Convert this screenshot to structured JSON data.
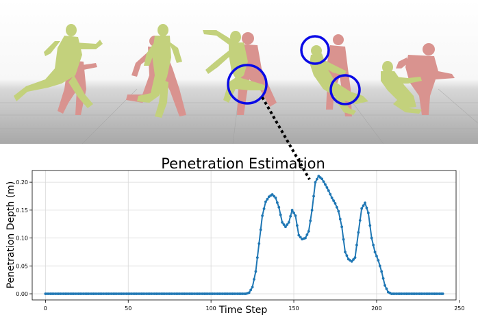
{
  "chart_data": {
    "type": "line",
    "title": "Penetration Estimation",
    "xlabel": "Time Step",
    "ylabel": "Penetration Depth (m)",
    "xlim": [
      -8,
      248
    ],
    "ylim": [
      -0.011,
      0.221
    ],
    "xticks": [
      0,
      50,
      100,
      150,
      200,
      250
    ],
    "yticks": [
      0.0,
      0.05,
      0.1,
      0.15,
      0.2
    ],
    "xtick_labels": [
      "0",
      "50",
      "100",
      "150",
      "200",
      "250"
    ],
    "ytick_labels": [
      "0.00",
      "0.05",
      "0.10",
      "0.15",
      "0.20"
    ],
    "grid": true,
    "marker": "circle",
    "color": "#1f77b4",
    "keypoints": [
      [
        0,
        0
      ],
      [
        121,
        0
      ],
      [
        123,
        0.002
      ],
      [
        125,
        0.012
      ],
      [
        127,
        0.04
      ],
      [
        129,
        0.09
      ],
      [
        131,
        0.14
      ],
      [
        133,
        0.165
      ],
      [
        135,
        0.174
      ],
      [
        137,
        0.178
      ],
      [
        139,
        0.172
      ],
      [
        141,
        0.155
      ],
      [
        143,
        0.128
      ],
      [
        145,
        0.12
      ],
      [
        147,
        0.128
      ],
      [
        149,
        0.15
      ],
      [
        151,
        0.14
      ],
      [
        153,
        0.105
      ],
      [
        155,
        0.098
      ],
      [
        157,
        0.1
      ],
      [
        159,
        0.112
      ],
      [
        161,
        0.15
      ],
      [
        163,
        0.2
      ],
      [
        165,
        0.211
      ],
      [
        167,
        0.206
      ],
      [
        169,
        0.196
      ],
      [
        171,
        0.185
      ],
      [
        173,
        0.172
      ],
      [
        175,
        0.162
      ],
      [
        177,
        0.148
      ],
      [
        179,
        0.12
      ],
      [
        181,
        0.075
      ],
      [
        183,
        0.062
      ],
      [
        185,
        0.058
      ],
      [
        187,
        0.065
      ],
      [
        189,
        0.11
      ],
      [
        191,
        0.153
      ],
      [
        193,
        0.163
      ],
      [
        195,
        0.145
      ],
      [
        197,
        0.1
      ],
      [
        199,
        0.075
      ],
      [
        201,
        0.06
      ],
      [
        203,
        0.04
      ],
      [
        205,
        0.015
      ],
      [
        207,
        0.003
      ],
      [
        209,
        0
      ],
      [
        240,
        0
      ]
    ]
  },
  "scene": {
    "highlight_color": "#0a0ae6",
    "figure_colors": {
      "green": "#c3d17c",
      "pink": "#d9938f"
    }
  }
}
